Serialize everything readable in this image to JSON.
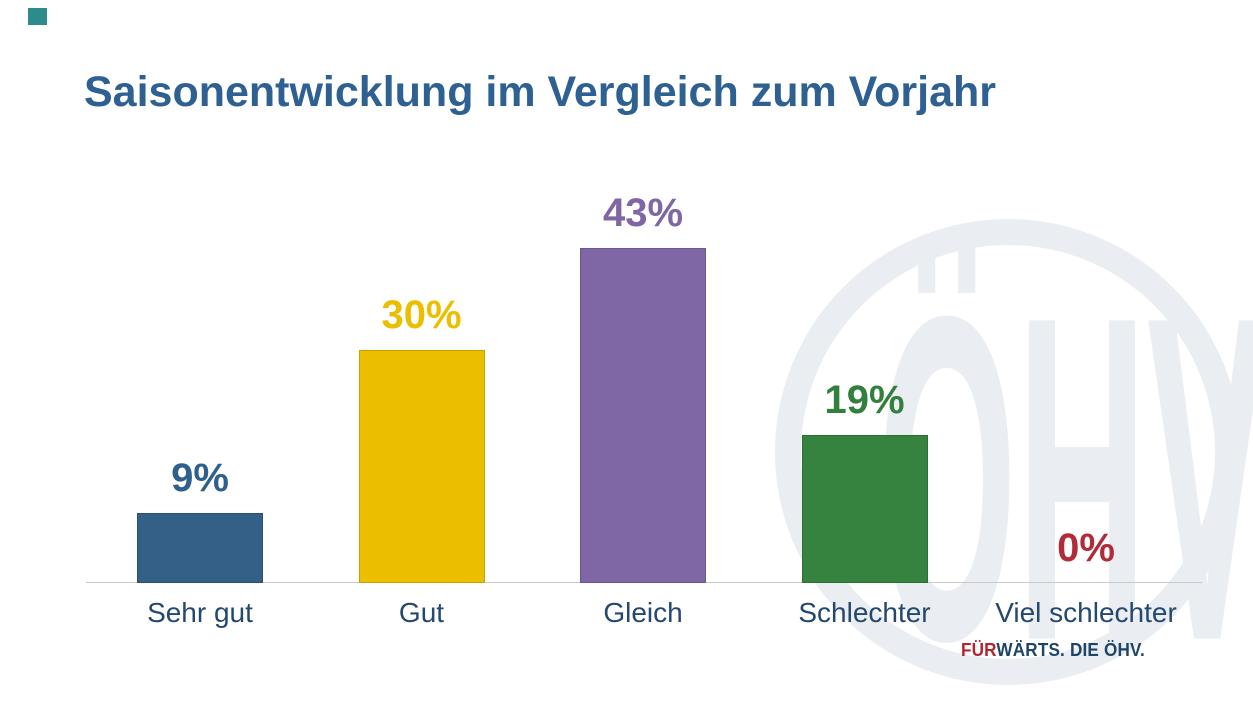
{
  "title": "Saisonentwicklung im Vergleich zum Vorjahr",
  "chart_data": {
    "type": "bar",
    "title": "Saisonentwicklung im Vergleich zum Vorjahr",
    "categories": [
      "Sehr gut",
      "Gut",
      "Gleich",
      "Schlechter",
      "Viel schlechter"
    ],
    "values": [
      9,
      30,
      43,
      19,
      0
    ],
    "value_labels": [
      "9%",
      "30%",
      "43%",
      "19%",
      "0%"
    ],
    "bar_colors": [
      "#346087",
      "#EBBE00",
      "#7F66A5",
      "#36823F",
      "#B02C38"
    ],
    "label_colors": [
      "#2F5F8C",
      "#EBBE00",
      "#7F66A5",
      "#337F3E",
      "#B02C38"
    ],
    "xlabel": "",
    "ylabel": "",
    "ylim": [
      0,
      45
    ],
    "grid": false,
    "legend": false,
    "category_label_color": "#24486E",
    "axis_line_color": "#C9C9C9"
  },
  "colors": {
    "title": "#2E6191",
    "background": "#FFFFFF",
    "accent_square": "#2E8B8B",
    "watermark": "#EAEDF2",
    "tagline_red": "#B22430",
    "tagline_navy": "#1E4468"
  },
  "watermark": {
    "text": "ÖHV"
  },
  "footer": {
    "tagline_part1": "FÜR",
    "tagline_part2": "WÄRTS. DIE ÖHV."
  }
}
